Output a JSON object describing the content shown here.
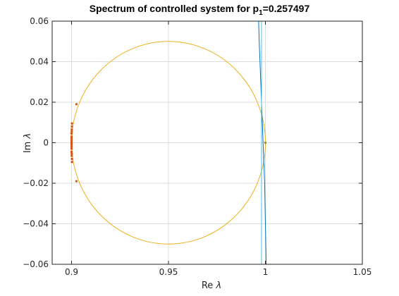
{
  "chart_data": {
    "type": "scatter",
    "title": {
      "prefix": "Spectrum of controlled system for p",
      "subscript": "1",
      "suffix": "=0.257497"
    },
    "xlabel": {
      "text": "Re ",
      "symbol": "λ"
    },
    "ylabel": {
      "text": "Im ",
      "symbol": "λ"
    },
    "xlim": [
      0.89,
      1.05
    ],
    "ylim": [
      -0.06,
      0.06
    ],
    "xticks": [
      0.9,
      0.95,
      1.0,
      1.05
    ],
    "xtick_labels": [
      "0.9",
      "0.95",
      "1",
      "1.05"
    ],
    "yticks": [
      -0.06,
      -0.04,
      -0.02,
      0,
      0.02,
      0.04,
      0.06
    ],
    "ytick_labels": [
      "−0.06",
      "−0.04",
      "−0.02",
      "0",
      "0.02",
      "0.04",
      "0.06"
    ],
    "grid": true,
    "series": [
      {
        "kind": "circle",
        "center": [
          0.95,
          0
        ],
        "radius": 0.05,
        "color": "#EDB120"
      },
      {
        "kind": "line",
        "color": "#0072BD",
        "x": [
          0.9965,
          0.9968,
          0.9972,
          0.9976,
          0.998,
          0.9984,
          0.9988,
          0.9992,
          0.9996,
          0.9998,
          1.0,
          1.0002,
          1.0004
        ],
        "y": [
          0.06,
          0.05,
          0.04,
          0.03,
          0.02,
          0.01,
          0.0,
          -0.01,
          -0.02,
          -0.03,
          -0.04,
          -0.05,
          -0.06
        ]
      },
      {
        "kind": "line",
        "color": "#4DBEEE",
        "x": [
          0.998,
          0.998
        ],
        "y": [
          0.06,
          -0.06
        ]
      },
      {
        "kind": "markers",
        "color": "#D95319",
        "x": [
          0.9025,
          0.9025,
          0.9002,
          0.9002,
          0.9001,
          0.9001,
          0.9,
          0.9,
          0.9,
          0.9,
          0.9,
          0.9,
          0.9,
          0.9,
          0.9,
          0.9,
          0.9001,
          0.9001,
          0.9002,
          0.9002,
          1.0
        ],
        "y": [
          0.019,
          -0.019,
          0.0095,
          -0.0095,
          0.0065,
          -0.0065,
          0.0045,
          -0.0045,
          0.003,
          -0.003,
          0.002,
          -0.002,
          0.001,
          -0.001,
          0.0004,
          -0.0004,
          0.0055,
          -0.0055,
          0.008,
          -0.008,
          0
        ]
      },
      {
        "kind": "markers",
        "color": "#77AC30",
        "x": [
          1.0
        ],
        "y": [
          0
        ]
      }
    ]
  }
}
